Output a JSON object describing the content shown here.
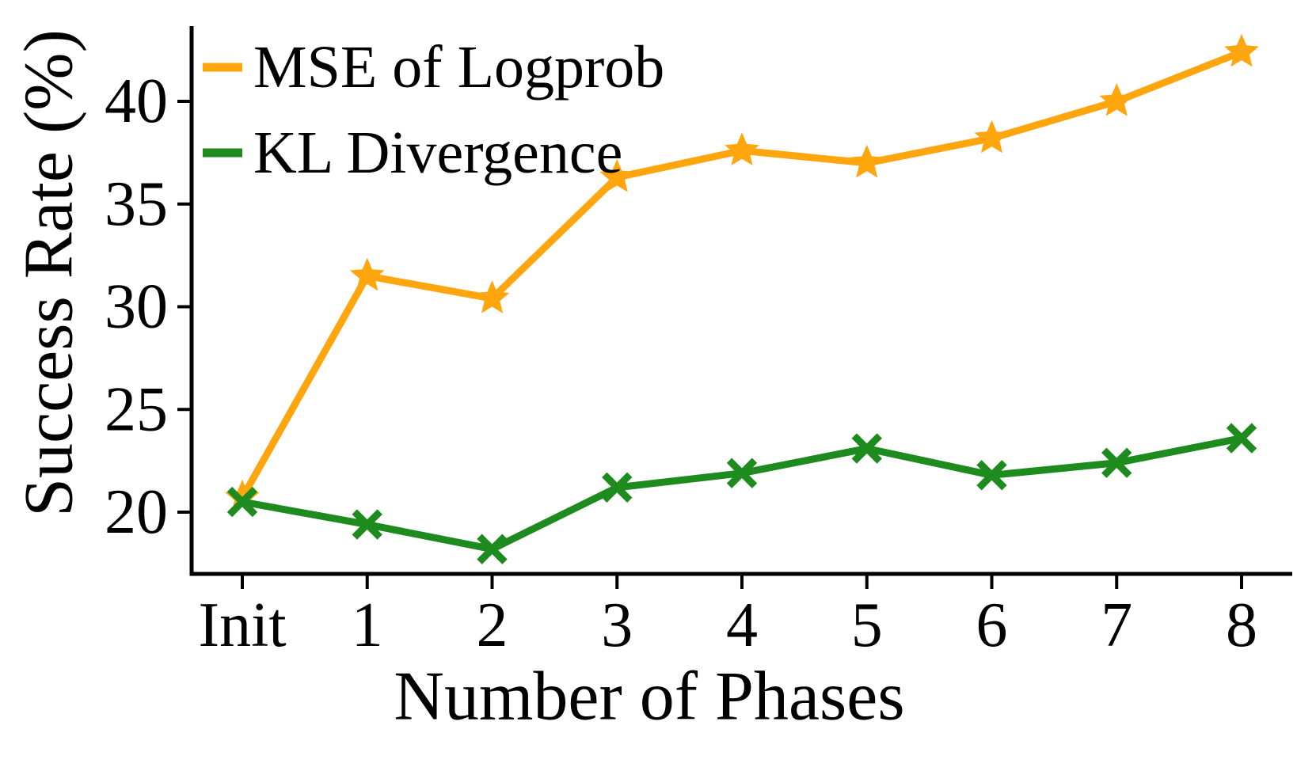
{
  "figure": {
    "background": "#ffffff",
    "axis_color": "#000000"
  },
  "chart_data": {
    "type": "line",
    "title": "",
    "xlabel": "Number of Phases",
    "ylabel": "Success Rate (%)",
    "categories": [
      "Init",
      "1",
      "2",
      "3",
      "4",
      "5",
      "6",
      "7",
      "8"
    ],
    "yticks": [
      20,
      25,
      30,
      35,
      40
    ],
    "ylim": [
      17.0,
      43.5
    ],
    "grid": false,
    "legend_position": "upper-left",
    "series": [
      {
        "name": "MSE of Logprob",
        "color": "#FFA50E",
        "marker": "star",
        "values": [
          20.7,
          31.5,
          30.4,
          36.3,
          37.6,
          37.0,
          38.2,
          40.0,
          42.4
        ]
      },
      {
        "name": "KL Divergence",
        "color": "#1E8B1E",
        "marker": "x",
        "values": [
          20.5,
          19.4,
          18.2,
          21.2,
          21.9,
          23.1,
          21.8,
          22.4,
          23.6
        ]
      }
    ]
  }
}
